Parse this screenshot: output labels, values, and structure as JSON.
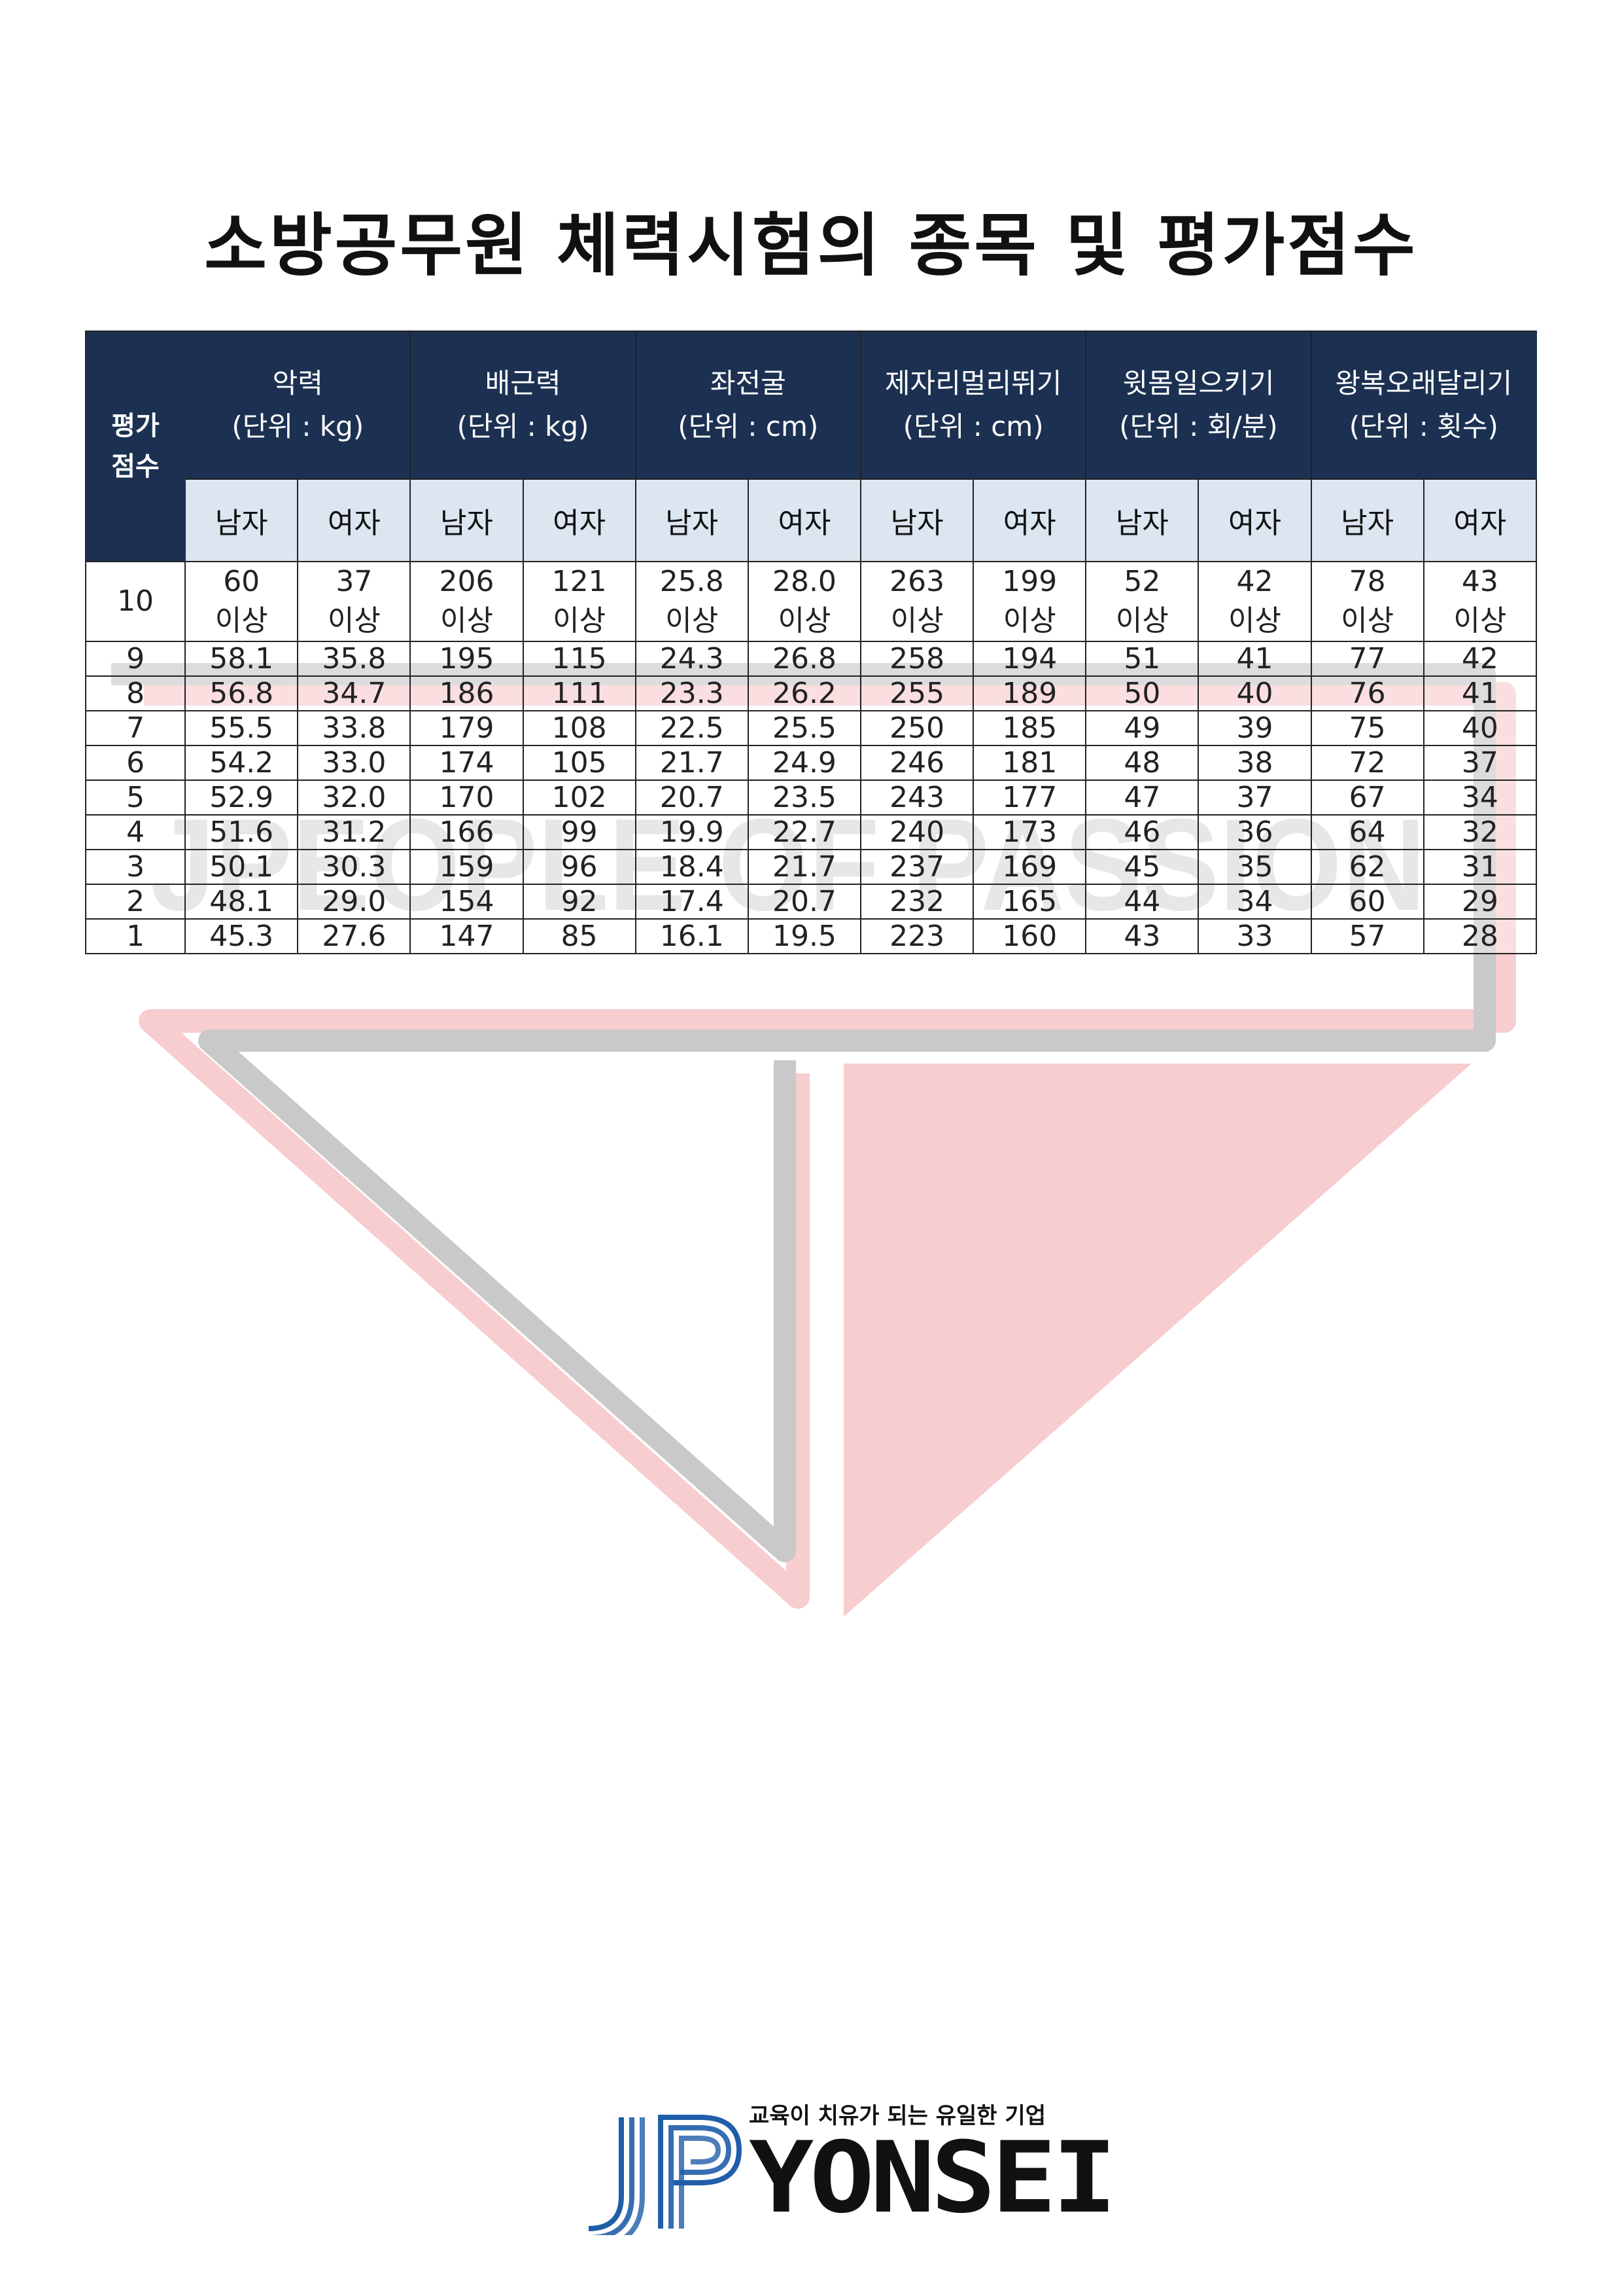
{
  "document": {
    "title": "소방공무원 체력시험의 종목 및 평가점수"
  },
  "table": {
    "corner_label": "평가\n점수",
    "events": [
      {
        "name": "악력",
        "unit": "(단위 : kg)"
      },
      {
        "name": "배근력",
        "unit": "(단위 : kg)"
      },
      {
        "name": "좌전굴",
        "unit": "(단위 : cm)"
      },
      {
        "name": "제자리멀리뛰기",
        "unit": "(단위 : cm)"
      },
      {
        "name": "윗몸일으키기",
        "unit": "(단위 : 회/분)"
      },
      {
        "name": "왕복오래달리기",
        "unit": "(단위 : 횟수)"
      }
    ],
    "gender_labels": [
      "남자",
      "여자",
      "남자",
      "여자",
      "남자",
      "여자",
      "남자",
      "여자",
      "남자",
      "여자",
      "남자",
      "여자"
    ],
    "rows": [
      {
        "score": "10",
        "values": [
          "60\n이상",
          "37\n이상",
          "206\n이상",
          "121\n이상",
          "25.8\n이상",
          "28.0\n이상",
          "263\n이상",
          "199\n이상",
          "52\n이상",
          "42\n이상",
          "78\n이상",
          "43\n이상"
        ]
      },
      {
        "score": "9",
        "values": [
          "58.1",
          "35.8",
          "195",
          "115",
          "24.3",
          "26.8",
          "258",
          "194",
          "51",
          "41",
          "77",
          "42"
        ]
      },
      {
        "score": "8",
        "values": [
          "56.8",
          "34.7",
          "186",
          "111",
          "23.3",
          "26.2",
          "255",
          "189",
          "50",
          "40",
          "76",
          "41"
        ]
      },
      {
        "score": "7",
        "values": [
          "55.5",
          "33.8",
          "179",
          "108",
          "22.5",
          "25.5",
          "250",
          "185",
          "49",
          "39",
          "75",
          "40"
        ]
      },
      {
        "score": "6",
        "values": [
          "54.2",
          "33.0",
          "174",
          "105",
          "21.7",
          "24.9",
          "246",
          "181",
          "48",
          "38",
          "72",
          "37"
        ]
      },
      {
        "score": "5",
        "values": [
          "52.9",
          "32.0",
          "170",
          "102",
          "20.7",
          "23.5",
          "243",
          "177",
          "47",
          "37",
          "67",
          "34"
        ]
      },
      {
        "score": "4",
        "values": [
          "51.6",
          "31.2",
          "166",
          "99",
          "19.9",
          "22.7",
          "240",
          "173",
          "46",
          "36",
          "64",
          "32"
        ]
      },
      {
        "score": "3",
        "values": [
          "50.1",
          "30.3",
          "159",
          "96",
          "18.4",
          "21.7",
          "237",
          "169",
          "45",
          "35",
          "62",
          "31"
        ]
      },
      {
        "score": "2",
        "values": [
          "48.1",
          "29.0",
          "154",
          "92",
          "17.4",
          "20.7",
          "232",
          "165",
          "44",
          "34",
          "60",
          "29"
        ]
      },
      {
        "score": "1",
        "values": [
          "45.3",
          "27.6",
          "147",
          "85",
          "16.1",
          "19.5",
          "223",
          "160",
          "43",
          "33",
          "57",
          "28"
        ]
      }
    ]
  },
  "watermark": {
    "text": "JPEOPLE OF PASSION",
    "colors": {
      "gray": "#c9c9c9",
      "pink": "#f7cdd0"
    }
  },
  "footer": {
    "tagline": "교육이 치유가 되는 유일한 기업",
    "brand": "YONSEI",
    "logo_mark": "jp-logo-icon",
    "colors": {
      "blue": "#1f5ea8",
      "text": "#111111"
    }
  }
}
